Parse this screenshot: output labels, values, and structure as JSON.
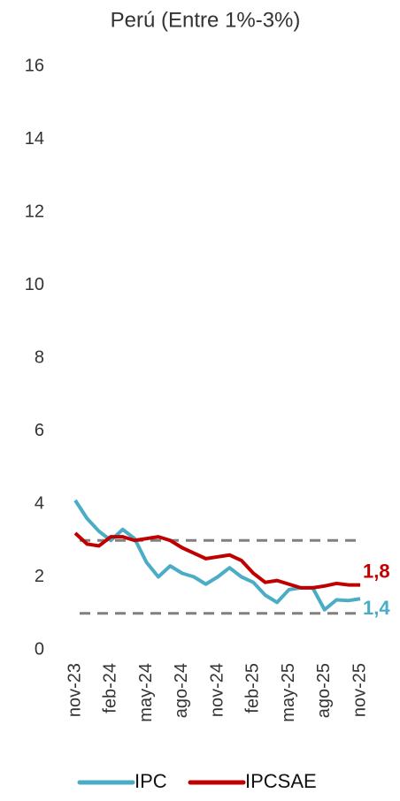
{
  "chart_data": {
    "type": "line",
    "title": "Perú (Entre 1%-3%)",
    "categories": [
      "nov-23",
      null,
      null,
      "feb-24",
      null,
      null,
      "may-24",
      null,
      null,
      "ago-24",
      null,
      null,
      "nov-24",
      null,
      null,
      "feb-25",
      null,
      null,
      "may-25",
      null,
      null,
      "ago-25",
      null,
      null,
      "nov-25"
    ],
    "series": [
      {
        "name": "IPC",
        "color": "#4bacc6",
        "end_label": "1,4",
        "values": [
          4.1,
          3.6,
          3.25,
          3.0,
          3.3,
          3.05,
          2.4,
          2.0,
          2.3,
          2.1,
          2.0,
          1.8,
          2.0,
          2.25,
          2.0,
          1.85,
          1.5,
          1.3,
          1.65,
          1.7,
          1.7,
          1.1,
          1.37,
          1.35,
          1.4
        ]
      },
      {
        "name": "IPCSAE",
        "color": "#c00000",
        "end_label": "1,8",
        "values": [
          3.2,
          2.9,
          2.85,
          3.1,
          3.1,
          3.0,
          3.05,
          3.1,
          3.0,
          2.8,
          2.65,
          2.5,
          2.55,
          2.6,
          2.45,
          2.1,
          1.85,
          1.9,
          1.8,
          1.7,
          1.7,
          1.75,
          1.82,
          1.78,
          1.78
        ]
      }
    ],
    "reference_lines": [
      1,
      3
    ],
    "ylim": [
      0,
      16
    ],
    "yticks": [
      0,
      2,
      4,
      6,
      8,
      10,
      12,
      14,
      16
    ],
    "grid": false,
    "legend": "bottom"
  }
}
